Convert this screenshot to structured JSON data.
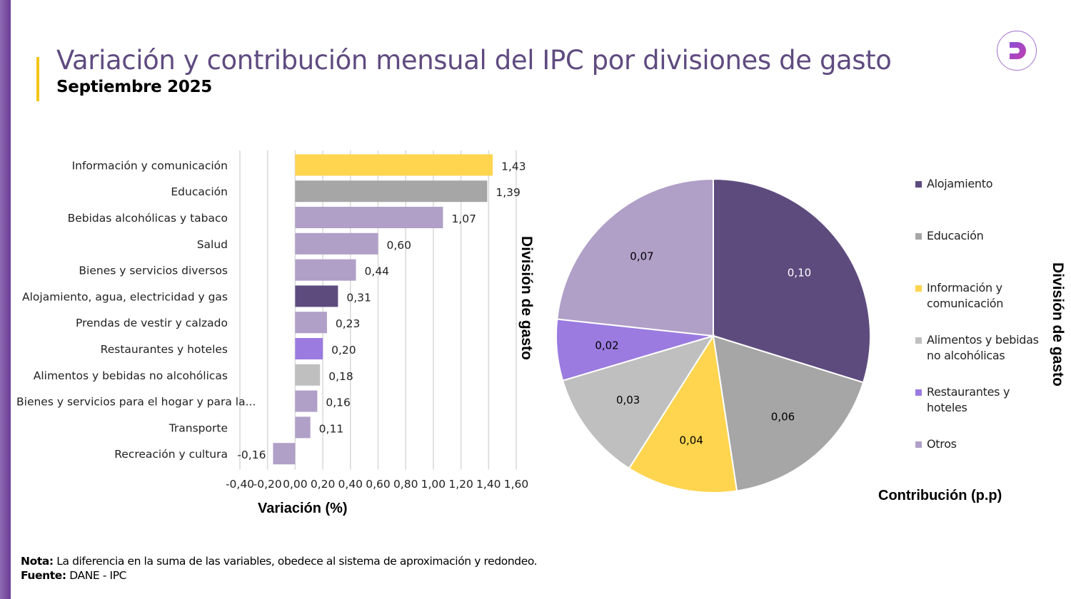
{
  "header": {
    "title": "Variación  y contribución mensual del IPC por divisiones de gasto",
    "subtitle": "Septiembre 2025",
    "logo_icon": "dane-d-logo"
  },
  "colors": {
    "brand_purple": "#6a3d96",
    "title_color": "#5f4b80",
    "accent_yellow": "#f5c518"
  },
  "chart_data": [
    {
      "type": "bar",
      "orientation": "horizontal",
      "title": "",
      "xlabel": "Variación (%)",
      "ylabel": "División de gasto",
      "xlim": [
        -0.4,
        1.6
      ],
      "xticks": [
        -0.4,
        -0.2,
        0.0,
        0.2,
        0.4,
        0.6,
        0.8,
        1.0,
        1.2,
        1.4,
        1.6
      ],
      "xtick_labels": [
        "-0,40",
        "-0,20",
        "0,00",
        "0,20",
        "0,40",
        "0,60",
        "0,80",
        "1,00",
        "1,20",
        "1,40",
        "1,60"
      ],
      "grid": true,
      "categories": [
        "Información y comunicación",
        "Educación",
        "Bebidas alcohólicas y tabaco",
        "Salud",
        "Bienes y servicios diversos",
        "Alojamiento, agua, electricidad y gas",
        "Prendas de vestir y calzado",
        "Restaurantes y hoteles",
        "Alimentos y bebidas no alcohólicas",
        "Bienes y servicios para el hogar y para la...",
        "Transporte",
        "Recreación y cultura"
      ],
      "values": [
        1.43,
        1.39,
        1.07,
        0.6,
        0.44,
        0.31,
        0.23,
        0.2,
        0.18,
        0.16,
        0.11,
        -0.16
      ],
      "value_labels": [
        "1,43",
        "1,39",
        "1,07",
        "0,60",
        "0,44",
        "0,31",
        "0,23",
        "0,20",
        "0,18",
        "0,16",
        "0,11",
        "-0,16"
      ],
      "bar_colors": [
        "#ffd54f",
        "#a6a6a6",
        "#b09fc7",
        "#b09fc7",
        "#b09fc7",
        "#5e4b7e",
        "#b09fc7",
        "#9b7be0",
        "#bfbfbf",
        "#b09fc7",
        "#b09fc7",
        "#b09fc7"
      ]
    },
    {
      "type": "pie",
      "title": "",
      "xlabel": "Contribución (p.p)",
      "ylabel": "División de gasto",
      "legend_position": "right",
      "categories": [
        "Alojamiento",
        "Educación",
        "Información y comunicación",
        "Alimentos y bebidas no alcohólicas",
        "Restaurantes y hoteles",
        "Otros"
      ],
      "values": [
        0.1,
        0.06,
        0.04,
        0.03,
        0.02,
        0.07
      ],
      "value_labels": [
        "0,10",
        "0,06",
        "0,04",
        "0,03",
        "0,02",
        "0,07"
      ],
      "slice_shares": [
        0.298,
        0.178,
        0.114,
        0.114,
        0.063,
        0.233
      ],
      "colors": [
        "#5e4b7e",
        "#a6a6a6",
        "#ffd54f",
        "#bfbfbf",
        "#9b7be0",
        "#b09fc7"
      ],
      "label_colors": [
        "#ffffff",
        "#000000",
        "#000000",
        "#000000",
        "#000000",
        "#000000"
      ],
      "legend_labels": [
        [
          "Alojamiento"
        ],
        [
          "Educación"
        ],
        [
          "Información y",
          "comunicación"
        ],
        [
          "Alimentos y bebidas",
          "no alcohólicas"
        ],
        [
          "Restaurantes y",
          "hoteles"
        ],
        [
          "Otros"
        ]
      ]
    }
  ],
  "footer": {
    "note_label": "Nota:",
    "note_text": " La diferencia en la suma de las variables, obedece al sistema de aproximación y redondeo.",
    "source_label": "Fuente:",
    "source_text": " DANE - IPC"
  }
}
